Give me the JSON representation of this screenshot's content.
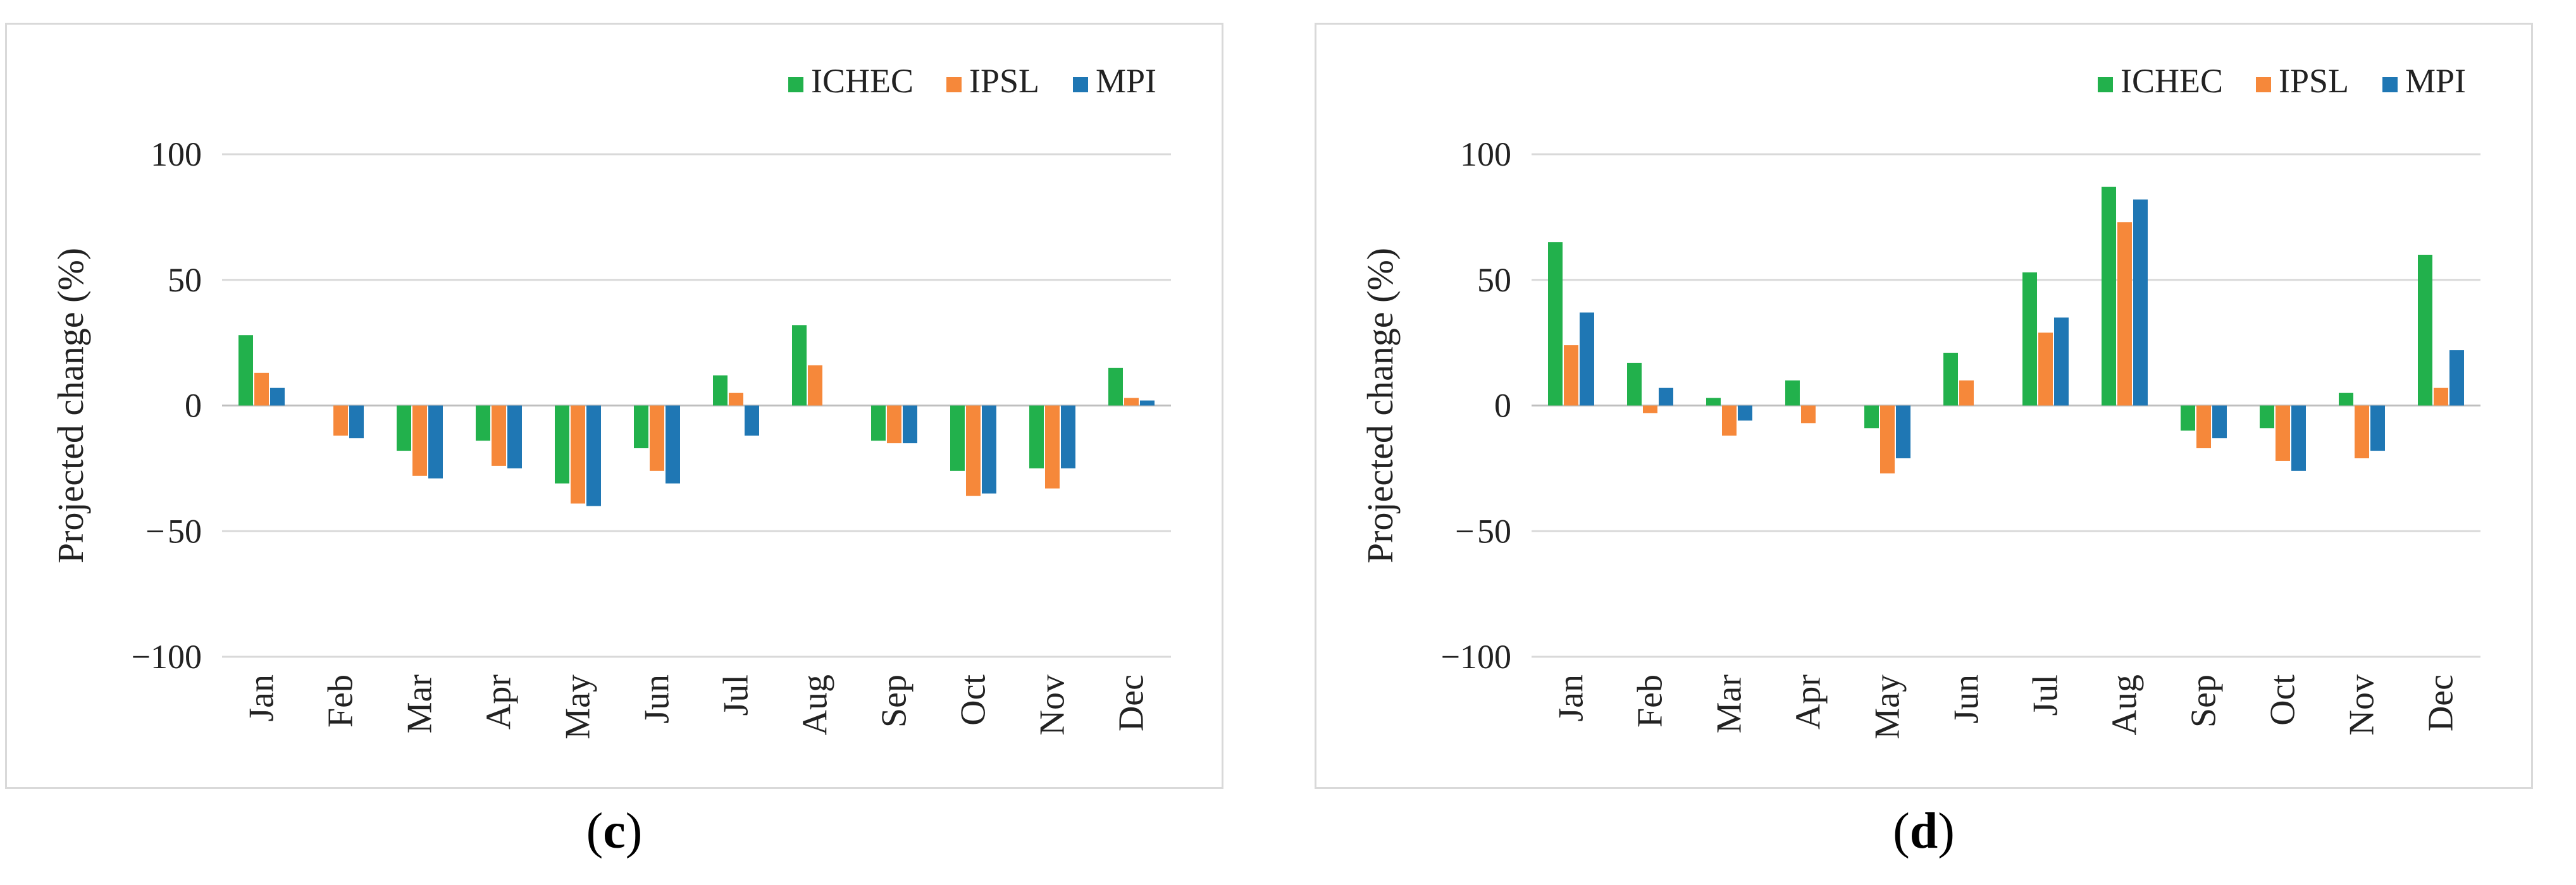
{
  "colors": {
    "ICHEC": "#22b14c",
    "IPSL": "#f6883a",
    "MPI": "#1f77b4",
    "grid": "#d9d9d9",
    "axis": "#bfbfbf"
  },
  "chart_data": [
    {
      "type": "bar",
      "panel": "c",
      "caption_open": "(",
      "caption_letter": "c",
      "caption_close": ")",
      "ylabel": "Projected change (%)",
      "ylim": [
        -100,
        100
      ],
      "yticks": [
        100,
        50,
        0,
        -50,
        -100
      ],
      "ytick_labels": [
        "100",
        "50",
        "0",
        "− 50",
        "−100"
      ],
      "categories": [
        "Jan",
        "Feb",
        "Mar",
        "Apr",
        "May",
        "Jun",
        "Jul",
        "Aug",
        "Sep",
        "Oct",
        "Nov",
        "Dec"
      ],
      "legend_position": "top-right",
      "series": [
        {
          "name": "ICHEC",
          "values": [
            28,
            0,
            -18,
            -14,
            -31,
            -17,
            12,
            32,
            -14,
            -26,
            -25,
            15
          ]
        },
        {
          "name": "IPSL",
          "values": [
            13,
            -12,
            -28,
            -24,
            -39,
            -26,
            5,
            16,
            -15,
            -36,
            -33,
            3
          ]
        },
        {
          "name": "MPI",
          "values": [
            7,
            -13,
            -29,
            -25,
            -40,
            -31,
            -12,
            0,
            -15,
            -35,
            -25,
            2
          ]
        }
      ]
    },
    {
      "type": "bar",
      "panel": "d",
      "caption_open": "(",
      "caption_letter": "d",
      "caption_close": ")",
      "ylabel": "Projected change (%)",
      "ylim": [
        -100,
        100
      ],
      "yticks": [
        100,
        50,
        0,
        -50,
        -100
      ],
      "ytick_labels": [
        "100",
        "50",
        "0",
        "− 50",
        "−100"
      ],
      "categories": [
        "Jan",
        "Feb",
        "Mar",
        "Apr",
        "May",
        "Jun",
        "Jul",
        "Aug",
        "Sep",
        "Oct",
        "Nov",
        "Dec"
      ],
      "legend_position": "top-right",
      "series": [
        {
          "name": "ICHEC",
          "values": [
            65,
            17,
            3,
            10,
            -9,
            21,
            53,
            87,
            -10,
            -9,
            5,
            60
          ]
        },
        {
          "name": "IPSL",
          "values": [
            24,
            -3,
            -12,
            -7,
            -27,
            10,
            29,
            73,
            -17,
            -22,
            -21,
            7
          ]
        },
        {
          "name": "MPI",
          "values": [
            37,
            7,
            -6,
            0,
            -21,
            0,
            35,
            82,
            -13,
            -26,
            -18,
            22
          ]
        }
      ]
    }
  ]
}
